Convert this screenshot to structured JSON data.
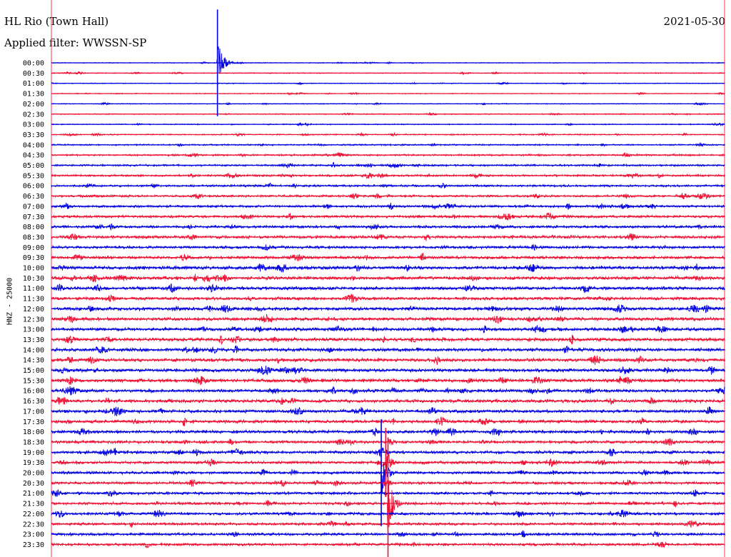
{
  "header": {
    "station": "HL Rio (Town Hall)",
    "filter": "Applied filter: WWSSN-SP",
    "date": "2021-05-30"
  },
  "channel_label": "HNZ - 25000",
  "colors": {
    "odd_trace": "#0000e0",
    "even_trace": "#ee1133",
    "boundary": "#ff3355",
    "text": "#000000"
  },
  "chart_data": {
    "type": "line",
    "description_kind": "helicorder",
    "row_labels": [
      "00:00",
      "00:30",
      "01:00",
      "01:30",
      "02:00",
      "02:30",
      "03:00",
      "03:30",
      "04:00",
      "04:30",
      "05:00",
      "05:30",
      "06:00",
      "06:30",
      "07:00",
      "07:30",
      "08:00",
      "08:30",
      "09:00",
      "09:30",
      "10:00",
      "10:30",
      "11:00",
      "11:30",
      "12:00",
      "12:30",
      "13:00",
      "13:30",
      "14:00",
      "14:30",
      "15:00",
      "15:30",
      "16:00",
      "16:30",
      "17:00",
      "17:30",
      "18:00",
      "18:30",
      "19:00",
      "19:30",
      "20:00",
      "20:30",
      "21:00",
      "21:30",
      "22:00",
      "22:30",
      "23:00",
      "23:30"
    ],
    "row_colors": [
      "blue",
      "red"
    ],
    "noise_level": [
      0.5,
      0.6,
      0.6,
      0.6,
      0.6,
      0.7,
      0.7,
      0.8,
      1.0,
      1.2,
      1.3,
      1.4,
      1.4,
      1.5,
      1.6,
      1.7,
      1.8,
      1.9,
      1.9,
      2.0,
      2.2,
      2.2,
      2.2,
      2.2,
      2.3,
      2.3,
      2.2,
      2.3,
      2.3,
      2.3,
      2.3,
      2.3,
      2.2,
      2.2,
      2.1,
      2.1,
      2.1,
      2.0,
      2.0,
      1.9,
      1.9,
      1.8,
      1.8,
      1.8,
      1.8,
      1.8,
      1.8,
      1.8
    ],
    "events": [
      {
        "row": 0,
        "minute": 7.4,
        "amplitude": 34,
        "type": "quake"
      },
      {
        "row": 39,
        "minute": 14.9,
        "amplitude": 22,
        "type": "quake"
      },
      {
        "row": 40,
        "minute": 14.7,
        "amplitude": 34,
        "type": "quake"
      },
      {
        "row": 43,
        "minute": 15.0,
        "amplitude": 42,
        "type": "quake"
      }
    ]
  }
}
